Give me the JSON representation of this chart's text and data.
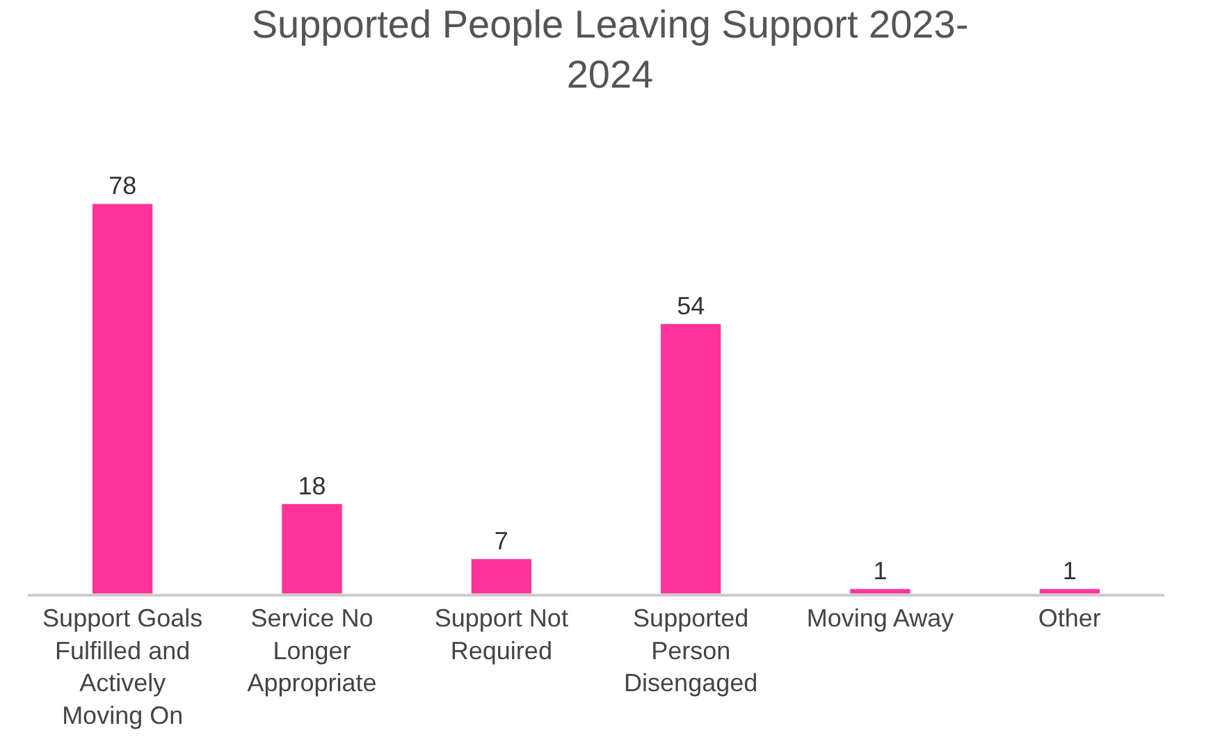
{
  "chart_data": {
    "type": "bar",
    "title": "Supported People Leaving Support 2023-2024",
    "categories": [
      "Support Goals Fulfilled and Actively Moving On",
      "Service No Longer Appropriate",
      "Support Not Required",
      "Supported Person Disengaged",
      "Moving Away",
      "Other"
    ],
    "values": [
      78,
      18,
      7,
      54,
      1,
      1
    ],
    "color": "#ff3399",
    "data_labels": true
  }
}
